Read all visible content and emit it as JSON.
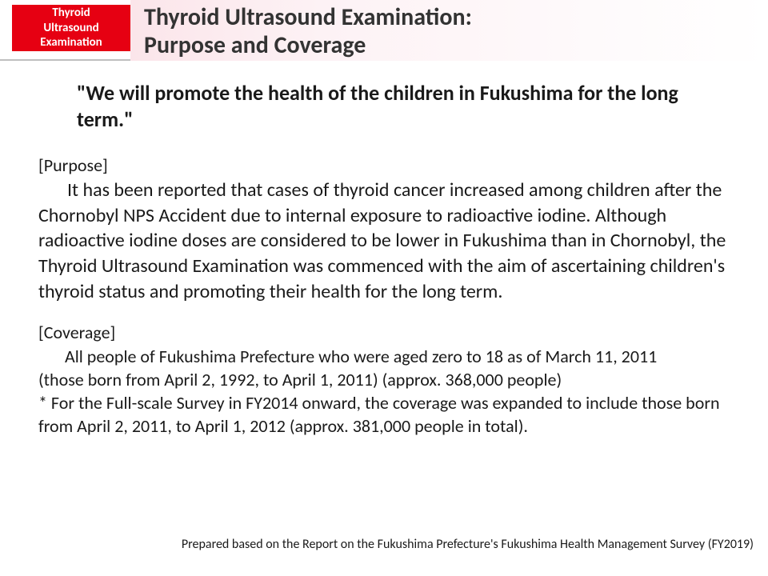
{
  "badge": {
    "line1": "Thyroid",
    "line2": "Ultrasound",
    "line3": "Examination"
  },
  "title": "Thyroid Ultrasound Examination:\nPurpose and Coverage",
  "quote": "\"We will promote the health of the children in Fukushima for the long term.\"",
  "purpose": {
    "label": "[Purpose]",
    "body": "It has been reported that cases of thyroid cancer increased among children after the Chornobyl NPS Accident due to internal exposure to radioactive iodine. Although radioactive iodine doses are considered to be lower in Fukushima than in Chornobyl, the Thyroid Ultrasound Examination was commenced with the aim of ascertaining children's thyroid status and promoting their health for the long term."
  },
  "coverage": {
    "label": "[Coverage]",
    "line1": "All people of Fukushima Prefecture who were aged zero to 18 as of March 11, 2011",
    "line2": "(those born from April 2, 1992, to April 1, 2011) (approx. 368,000 people)",
    "line3": "* For the Full-scale Survey in FY2014 onward, the coverage was expanded to include those born from April 2, 2011, to April 1, 2012 (approx. 381,000 people in total)."
  },
  "footer": "Prepared based on the Report on the Fukushima Prefecture's Fukushima Health Management Survey (FY2019)",
  "colors": {
    "badge_bg": "#e60012",
    "badge_text": "#ffffff",
    "text": "#1a1a1a",
    "rule": "#bfbfbf",
    "gradient_start": "#fbe5ea",
    "gradient_end": "#ffffff"
  }
}
